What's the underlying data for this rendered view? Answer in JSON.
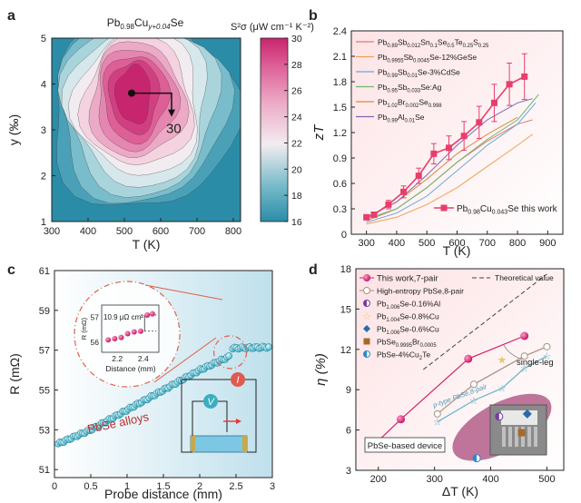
{
  "chart_data": [
    {
      "panel": "a",
      "type": "heatmap",
      "title": "Pb0.98Cuy+0.04Se",
      "title_parts": {
        "base": "Pb",
        "s1": "0.98",
        "el": "Cu",
        "s2": "y+0.04",
        "end": "Se"
      },
      "xlabel": "T (K)",
      "ylabel": "y (‰)",
      "xlim": [
        300,
        820
      ],
      "ylim": [
        1,
        5
      ],
      "xticks": [
        300,
        400,
        500,
        600,
        700,
        800
      ],
      "yticks": [
        1,
        2,
        3,
        4,
        5
      ],
      "colorbar_label": "S²σ (μW cm⁻¹ K⁻²)",
      "colorbar_ticks": [
        16,
        18,
        20,
        22,
        24,
        26,
        28,
        30
      ],
      "colorbar_range": [
        16,
        30
      ],
      "peak": {
        "x": 520,
        "y": 3.8
      },
      "peak_label": "30",
      "colors": {
        "low": "#2b8ca8",
        "mid": "#f2ecf0",
        "high": "#c8256f"
      }
    },
    {
      "panel": "b",
      "type": "line",
      "xlabel": "T (K)",
      "ylabel": "zT",
      "xlim": [
        250,
        950
      ],
      "ylim": [
        0,
        2.4
      ],
      "xticks": [
        300,
        400,
        500,
        600,
        700,
        800,
        900
      ],
      "yticks": [
        0,
        0.3,
        0.6,
        0.9,
        1.2,
        1.5,
        1.8,
        2.1,
        2.4
      ],
      "legend": [
        "Pb0.89Sb0.012Sn0.1Se0.5Te0.25S0.25",
        "Pb0.9955Sb0.0045Se-12%GeSe",
        "Pb0.99Sb0.01Se-3%CdSe",
        "Pb0.95Sb0.033Se:Ag",
        "Pb1.02Br0.002Se0.998",
        "Pb0.99Al0.01Se"
      ],
      "series": [
        {
          "name": "Pb0.89Sb0.012Sn0.1Se0.5Te0.25S0.25",
          "color": "#e07a6e",
          "x": [
            300,
            400,
            500,
            600,
            700,
            800,
            850
          ],
          "y": [
            0.16,
            0.3,
            0.55,
            0.85,
            1.1,
            1.3,
            1.35
          ]
        },
        {
          "name": "Pb0.9955Sb0.0045Se-12%GeSe",
          "color": "#f0a050",
          "x": [
            300,
            400,
            500,
            600,
            700,
            800,
            850
          ],
          "y": [
            0.12,
            0.2,
            0.35,
            0.55,
            0.8,
            1.05,
            1.18
          ]
        },
        {
          "name": "Pb0.99Sb0.01Se-3%CdSe",
          "color": "#6aa8d8",
          "x": [
            300,
            400,
            500,
            600,
            700,
            800,
            860
          ],
          "y": [
            0.14,
            0.25,
            0.45,
            0.75,
            1.05,
            1.3,
            1.55
          ]
        },
        {
          "name": "Pb0.95Sb0.033Se:Ag",
          "color": "#6db86a",
          "x": [
            300,
            400,
            500,
            600,
            700,
            800,
            870
          ],
          "y": [
            0.18,
            0.3,
            0.55,
            0.85,
            1.12,
            1.35,
            1.65
          ]
        },
        {
          "name": "Pb1.02Br0.002Se0.998",
          "color": "#d98c40",
          "x": [
            300,
            400,
            500,
            600,
            700,
            800
          ],
          "y": [
            0.2,
            0.38,
            0.65,
            0.95,
            1.18,
            1.38
          ]
        },
        {
          "name": "Pb0.99Al0.01Se",
          "color": "#7a6ab0",
          "x": [
            300,
            400,
            500,
            600,
            700,
            800,
            850
          ],
          "y": [
            0.2,
            0.38,
            0.7,
            1.05,
            1.35,
            1.55,
            1.6
          ]
        },
        {
          "name": "Pb0.98Cu0.043Se this work",
          "color": "#e83e6c",
          "marker": "square",
          "x": [
            300,
            325,
            373,
            423,
            473,
            523,
            573,
            623,
            673,
            723,
            773,
            823
          ],
          "y": [
            0.2,
            0.23,
            0.35,
            0.5,
            0.69,
            0.95,
            1.02,
            1.16,
            1.32,
            1.55,
            1.77,
            1.86
          ],
          "err": [
            0.03,
            0.03,
            0.05,
            0.07,
            0.09,
            0.12,
            0.14,
            0.17,
            0.19,
            0.22,
            0.25,
            0.27
          ]
        }
      ],
      "highlight_label": "Pb0.98Cu0.043Se this work"
    },
    {
      "panel": "c",
      "type": "scatter",
      "xlabel": "Probe distance (mm)",
      "ylabel": "R (mΩ)",
      "xlim": [
        0,
        3
      ],
      "ylim": [
        50.6,
        61
      ],
      "xticks": [
        0,
        0.5,
        1.0,
        1.5,
        2.0,
        2.5,
        3.0
      ],
      "yticks": [
        51,
        53,
        55,
        57,
        59,
        61
      ],
      "points": {
        "x_start": 0.05,
        "x_end": 2.95,
        "count": 112,
        "jump_at": 2.42,
        "segments": [
          {
            "x": [
              0.05,
              0.5,
              1.0,
              1.5,
              2.0,
              2.42
            ],
            "y": [
              52.3,
              53.0,
              54.0,
              55.0,
              56.0,
              56.7
            ]
          },
          {
            "x": [
              2.45,
              2.95
            ],
            "y": [
              57.1,
              57.15
            ]
          }
        ]
      },
      "annotation": "PbSe alloys",
      "inset": {
        "xlabel": "Distance (mm)",
        "ylabel": "R (mΩ)",
        "xticks": [
          2.2,
          2.4
        ],
        "yticks": [
          56,
          57
        ],
        "xlim": [
          2.08,
          2.52
        ],
        "ylim": [
          55.6,
          57.5
        ],
        "note": "10.9 μΩ cm²",
        "points": [
          [
            2.13,
            56.1
          ],
          [
            2.18,
            56.15
          ],
          [
            2.23,
            56.2
          ],
          [
            2.28,
            56.35
          ],
          [
            2.33,
            56.42
          ],
          [
            2.38,
            56.45
          ],
          [
            2.43,
            57.1
          ],
          [
            2.47,
            57.15
          ]
        ]
      },
      "circuit_labels": {
        "voltmeter": "V",
        "current": "I"
      }
    },
    {
      "panel": "d",
      "type": "line",
      "xlabel": "ΔT (K)",
      "ylabel": "η (%)",
      "xlim": [
        160,
        530
      ],
      "ylim": [
        3,
        18
      ],
      "xticks": [
        200,
        300,
        400,
        500
      ],
      "yticks": [
        3,
        6,
        9,
        12,
        15,
        18
      ],
      "series": [
        {
          "name": "This work,7-pair",
          "color": "#d4206e",
          "x": [
            190,
            240,
            360,
            460
          ],
          "y": [
            4.8,
            6.8,
            11.3,
            13.0
          ]
        },
        {
          "name": "High-entropy PbSe,8-pair",
          "color": "#a89080",
          "hollow": true,
          "x": [
            305,
            370,
            460,
            500
          ],
          "y": [
            7.2,
            9.4,
            11.5,
            12.2
          ]
        },
        {
          "name": "p-type PbSe,8-pair",
          "color": "#6ab4c8",
          "marker": "star",
          "x": [
            305,
            370,
            420,
            460,
            500
          ],
          "y": [
            6.6,
            8.2,
            9.1,
            10.6,
            11.5
          ]
        },
        {
          "name": "Theoretical value",
          "color": "#444",
          "dashed": true,
          "x": [
            280,
            500
          ],
          "y": [
            10.5,
            17.6
          ]
        }
      ],
      "single_points": [
        {
          "name": "Pb1.006Se-0.16%Al",
          "x": 415,
          "y": 7.0,
          "color": "#7a3aa0",
          "shape": "half-circle"
        },
        {
          "name": "Pb1.004Se-0.8%Cu",
          "x": 420,
          "y": 11.2,
          "color": "#e8c860",
          "shape": "star"
        },
        {
          "name": "Pb1.006Se-0.6%Cu",
          "x": 465,
          "y": 7.2,
          "color": "#2a6aa8",
          "shape": "diamond"
        },
        {
          "name": "PbSe0.9995Br0.0005",
          "x": 455,
          "y": 5.8,
          "color": "#a8682a",
          "shape": "square"
        },
        {
          "name": "PbSe-4%Cu2Te",
          "x": 375,
          "y": 3.9,
          "color": "#2a8ad0",
          "shape": "half-circle"
        }
      ],
      "legend": [
        "This work,7-pair",
        "High-entropy PbSe,8-pair",
        "Pb1.006Se-0.16%Al",
        "Pb1.004Se-0.8%Cu",
        "Pb1.006Se-0.6%Cu",
        "PbSe0.9995Br0.0005",
        "PbSe-4%Cu2Te",
        "Theoretical value"
      ],
      "annotations": [
        "single-leg",
        "p-type PbSe,8-pair",
        "PbSe-based device"
      ]
    }
  ],
  "panel_labels": [
    "a",
    "b",
    "c",
    "d"
  ]
}
